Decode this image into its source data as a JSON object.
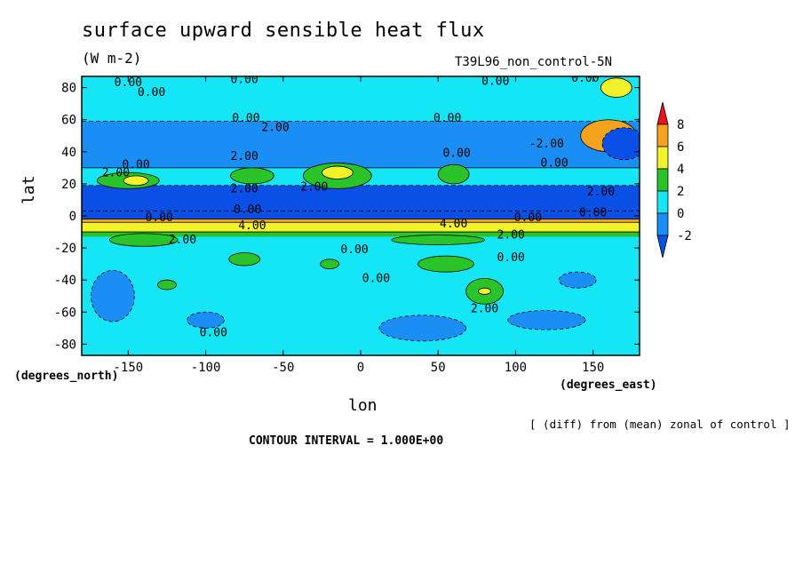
{
  "header": {
    "title": "surface upward sensible heat flux",
    "units": "(W m-2)",
    "run": "T39L96_non_control-5N"
  },
  "axes": {
    "xlabel": "lon",
    "ylabel": "lat",
    "xunit": "(degrees_east)",
    "yunit": "(degrees_north)"
  },
  "footer": {
    "note": "[ (diff) from (mean) zonal of control ]",
    "contour_interval": "CONTOUR INTERVAL = 1.000E+00"
  },
  "chart_data": {
    "type": "heatmap",
    "title": "surface upward sensible heat flux",
    "units": "(W m-2)",
    "xlabel": "lon",
    "ylabel": "lat",
    "xlim": [
      -180,
      180
    ],
    "ylim": [
      -87,
      87
    ],
    "xticks": [
      -150,
      -100,
      -50,
      0,
      50,
      100,
      150
    ],
    "xtick_labels": [
      "-150",
      "-100",
      "-50",
      "0",
      "50",
      "100",
      "150"
    ],
    "yticks": [
      -80,
      -60,
      -40,
      -20,
      0,
      20,
      40,
      60,
      80
    ],
    "ytick_labels": [
      "-80",
      "-60",
      "-40",
      "-20",
      "0",
      "20",
      "40",
      "60",
      "80"
    ],
    "contour_interval": 1.0,
    "colorbar": {
      "levels": [
        "8",
        "6",
        "4",
        "2",
        "0",
        "-2"
      ],
      "colors": [
        "#e8161c",
        "#f5a31f",
        "#f2f22a",
        "#2ac32a",
        "#14e6f5",
        "#1a8ef5",
        "#0a50e6"
      ]
    },
    "background_value": 0.5,
    "bands": [
      {
        "lat": [
          59,
          87
        ],
        "value": 0.5
      },
      {
        "lat": [
          30,
          59
        ],
        "value": -1.5
      },
      {
        "lat": [
          20,
          30
        ],
        "value": 0.5
      },
      {
        "lat": [
          3,
          19
        ],
        "value": -2.5
      },
      {
        "lat": [
          -2,
          3
        ],
        "value": -3.5
      },
      {
        "lat": [
          -4,
          -2
        ],
        "value": 7
      },
      {
        "lat": [
          -10,
          -4
        ],
        "value": 4.5
      },
      {
        "lat": [
          -13,
          -10
        ],
        "value": 2.5
      }
    ],
    "regions": [
      {
        "lon": -150,
        "lat": 22,
        "rx": 20,
        "ry": 5,
        "value": 2.5
      },
      {
        "lon": -145,
        "lat": 22,
        "rx": 8,
        "ry": 3,
        "value": 4.5
      },
      {
        "lon": -70,
        "lat": 25,
        "rx": 14,
        "ry": 5,
        "value": 2.5
      },
      {
        "lon": -15,
        "lat": 25,
        "rx": 22,
        "ry": 8,
        "value": 2.5
      },
      {
        "lon": -15,
        "lat": 27,
        "rx": 10,
        "ry": 4,
        "value": 4.5
      },
      {
        "lon": 60,
        "lat": 26,
        "rx": 10,
        "ry": 6,
        "value": 2.5
      },
      {
        "lon": 160,
        "lat": 50,
        "rx": 18,
        "ry": 10,
        "value": 6.5
      },
      {
        "lon": 170,
        "lat": 45,
        "rx": 14,
        "ry": 10,
        "value": -2.5
      },
      {
        "lon": 165,
        "lat": 80,
        "rx": 10,
        "ry": 6,
        "value": 4.5
      },
      {
        "lon": -140,
        "lat": -15,
        "rx": 22,
        "ry": 4,
        "value": 2.5
      },
      {
        "lon": 50,
        "lat": -15,
        "rx": 30,
        "ry": 3,
        "value": 2.5
      },
      {
        "lon": -75,
        "lat": -27,
        "rx": 10,
        "ry": 4,
        "value": 2.5
      },
      {
        "lon": -125,
        "lat": -43,
        "rx": 6,
        "ry": 3,
        "value": 2.5
      },
      {
        "lon": -20,
        "lat": -30,
        "rx": 6,
        "ry": 3,
        "value": 2.5
      },
      {
        "lon": 55,
        "lat": -30,
        "rx": 18,
        "ry": 5,
        "value": 2.5
      },
      {
        "lon": 80,
        "lat": -47,
        "rx": 12,
        "ry": 8,
        "value": 2.5
      },
      {
        "lon": 80,
        "lat": -47,
        "rx": 4,
        "ry": 2,
        "value": 4.5
      },
      {
        "lon": 140,
        "lat": -40,
        "rx": 12,
        "ry": 5,
        "value": -1.5
      },
      {
        "lon": -160,
        "lat": -50,
        "rx": 14,
        "ry": 16,
        "value": -1.5
      },
      {
        "lon": -100,
        "lat": -65,
        "rx": 12,
        "ry": 5,
        "value": -1.5
      },
      {
        "lon": 40,
        "lat": -70,
        "rx": 28,
        "ry": 8,
        "value": -1.5
      },
      {
        "lon": 120,
        "lat": -65,
        "rx": 25,
        "ry": 6,
        "value": -1.5
      }
    ],
    "contour_labels": [
      {
        "lon": -150,
        "lat": 83,
        "text": "0.00"
      },
      {
        "lon": -135,
        "lat": 77,
        "text": "0.00"
      },
      {
        "lon": -75,
        "lat": 85,
        "text": "0.00"
      },
      {
        "lon": 87,
        "lat": 84,
        "text": "0.00"
      },
      {
        "lon": 145,
        "lat": 86,
        "text": "0.00"
      },
      {
        "lon": -74,
        "lat": 61,
        "text": "0.00"
      },
      {
        "lon": -55,
        "lat": 55,
        "text": "2.00"
      },
      {
        "lon": 56,
        "lat": 61,
        "text": "0.00"
      },
      {
        "lon": 120,
        "lat": 45,
        "text": "-2.00"
      },
      {
        "lon": 62,
        "lat": 39,
        "text": "0.00"
      },
      {
        "lon": 125,
        "lat": 33,
        "text": "0.00"
      },
      {
        "lon": -75,
        "lat": 37,
        "text": "2.00"
      },
      {
        "lon": -145,
        "lat": 32,
        "text": "0.00"
      },
      {
        "lon": -158,
        "lat": 27,
        "text": "2.00"
      },
      {
        "lon": -30,
        "lat": 18,
        "text": "2.00"
      },
      {
        "lon": -75,
        "lat": 17,
        "text": "2.00"
      },
      {
        "lon": 155,
        "lat": 15,
        "text": "2.00"
      },
      {
        "lon": -73,
        "lat": 4,
        "text": "0.00"
      },
      {
        "lon": -130,
        "lat": -1,
        "text": "0.00"
      },
      {
        "lon": -70,
        "lat": -6,
        "text": "4.00"
      },
      {
        "lon": 60,
        "lat": -5,
        "text": "4.00"
      },
      {
        "lon": 108,
        "lat": -1,
        "text": "0.00"
      },
      {
        "lon": 150,
        "lat": 2,
        "text": "0.00"
      },
      {
        "lon": 97,
        "lat": -12,
        "text": "2.00"
      },
      {
        "lon": -115,
        "lat": -15,
        "text": "2.00"
      },
      {
        "lon": -4,
        "lat": -21,
        "text": "0.00"
      },
      {
        "lon": 97,
        "lat": -26,
        "text": "0.00"
      },
      {
        "lon": 10,
        "lat": -39,
        "text": "0.00"
      },
      {
        "lon": 80,
        "lat": -58,
        "text": "2.00"
      },
      {
        "lon": -95,
        "lat": -73,
        "text": "0.00"
      }
    ]
  }
}
